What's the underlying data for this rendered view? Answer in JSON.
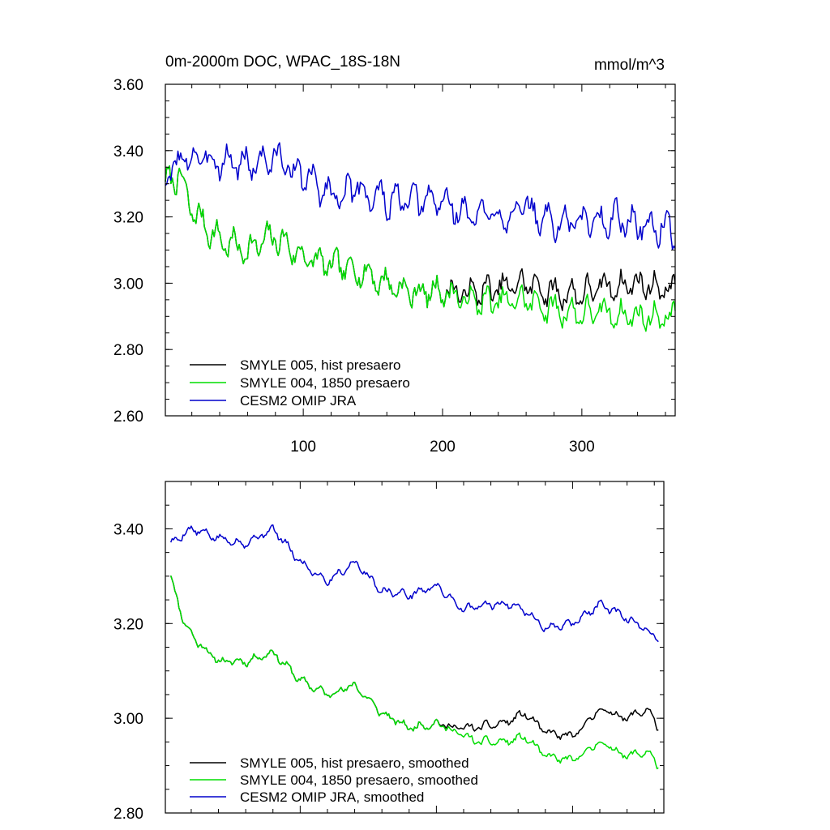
{
  "chart_data": [
    {
      "type": "line",
      "title": "0m-2000m DOC, WPAC_18S-18N",
      "units": "mmol/m^3",
      "xlim": [
        1,
        367
      ],
      "ylim": [
        2.6,
        3.6
      ],
      "xticks": [
        100,
        200,
        300
      ],
      "xtick_labels": [
        "100",
        "200",
        "300"
      ],
      "yticks": [
        2.6,
        2.8,
        3.0,
        3.2,
        3.4,
        3.6
      ],
      "ytick_labels": [
        "2.60",
        "2.80",
        "3.00",
        "3.20",
        "3.40",
        "3.60"
      ],
      "legend_position": "bottom-left",
      "grid": false,
      "series": [
        {
          "name": "SMYLE 005, hist presaero",
          "color": "#000000",
          "x_start": 1,
          "x_end": 367,
          "anchors": [
            [
              1,
              3.3
            ],
            [
              10,
              3.33
            ],
            [
              20,
              3.22
            ],
            [
              40,
              3.13
            ],
            [
              60,
              3.1
            ],
            [
              80,
              3.14
            ],
            [
              100,
              3.08
            ],
            [
              120,
              3.05
            ],
            [
              140,
              3.04
            ],
            [
              160,
              3.0
            ],
            [
              180,
              2.97
            ],
            [
              200,
              2.98
            ],
            [
              215,
              2.97
            ],
            [
              240,
              2.98
            ],
            [
              260,
              3.0
            ],
            [
              280,
              2.97
            ],
            [
              300,
              2.97
            ],
            [
              320,
              2.99
            ],
            [
              340,
              3.0
            ],
            [
              367,
              2.98
            ]
          ],
          "amplitude": 0.075,
          "seed": 7
        },
        {
          "name": "SMYLE 004, 1850 presaero",
          "color": "#00dd00",
          "x_start": 1,
          "x_end": 367,
          "anchors": [
            [
              1,
              3.3
            ],
            [
              10,
              3.33
            ],
            [
              20,
              3.22
            ],
            [
              40,
              3.13
            ],
            [
              60,
              3.1
            ],
            [
              80,
              3.14
            ],
            [
              100,
              3.08
            ],
            [
              120,
              3.05
            ],
            [
              140,
              3.04
            ],
            [
              160,
              3.0
            ],
            [
              180,
              2.97
            ],
            [
              200,
              2.98
            ],
            [
              215,
              2.95
            ],
            [
              240,
              2.94
            ],
            [
              260,
              2.95
            ],
            [
              280,
              2.92
            ],
            [
              300,
              2.91
            ],
            [
              320,
              2.91
            ],
            [
              340,
              2.9
            ],
            [
              367,
              2.9
            ]
          ],
          "amplitude": 0.075,
          "seed": 7
        },
        {
          "name": "CESM2 OMIP JRA",
          "color": "#0000cc",
          "x_start": 1,
          "x_end": 367,
          "anchors": [
            [
              1,
              3.32
            ],
            [
              15,
              3.38
            ],
            [
              40,
              3.37
            ],
            [
              60,
              3.36
            ],
            [
              80,
              3.38
            ],
            [
              100,
              3.32
            ],
            [
              120,
              3.27
            ],
            [
              140,
              3.28
            ],
            [
              160,
              3.25
            ],
            [
              180,
              3.24
            ],
            [
              200,
              3.25
            ],
            [
              220,
              3.2
            ],
            [
              240,
              3.21
            ],
            [
              260,
              3.22
            ],
            [
              280,
              3.18
            ],
            [
              300,
              3.19
            ],
            [
              320,
              3.2
            ],
            [
              340,
              3.18
            ],
            [
              367,
              3.16
            ]
          ],
          "amplitude": 0.085,
          "seed": 3
        }
      ]
    },
    {
      "type": "line",
      "title": "",
      "xlim": [
        1,
        367
      ],
      "ylim": [
        2.8,
        3.5
      ],
      "xticks": [
        100,
        200,
        300
      ],
      "xtick_labels": [],
      "yticks": [
        2.8,
        3.0,
        3.2,
        3.4
      ],
      "ytick_labels": [
        "2.80",
        "3.00",
        "3.20",
        "3.40"
      ],
      "legend_position": "bottom-left",
      "grid": false,
      "series": [
        {
          "name": "SMYLE 005, hist presaero, smoothed",
          "color": "#000000",
          "x_start": 5,
          "x_end": 363,
          "anchors": [
            [
              5,
              3.3
            ],
            [
              15,
              3.2
            ],
            [
              25,
              3.16
            ],
            [
              40,
              3.12
            ],
            [
              60,
              3.12
            ],
            [
              80,
              3.14
            ],
            [
              100,
              3.08
            ],
            [
              120,
              3.05
            ],
            [
              140,
              3.07
            ],
            [
              160,
              3.01
            ],
            [
              180,
              2.98
            ],
            [
              200,
              2.99
            ],
            [
              215,
              2.98
            ],
            [
              230,
              2.98
            ],
            [
              250,
              2.99
            ],
            [
              265,
              3.01
            ],
            [
              280,
              2.97
            ],
            [
              300,
              2.96
            ],
            [
              320,
              3.02
            ],
            [
              340,
              3.0
            ],
            [
              355,
              3.02
            ],
            [
              363,
              2.98
            ]
          ],
          "amplitude": 0.015,
          "seed": 11
        },
        {
          "name": "SMYLE 004, 1850 presaero, smoothed",
          "color": "#00dd00",
          "x_start": 5,
          "x_end": 363,
          "anchors": [
            [
              5,
              3.3
            ],
            [
              15,
              3.2
            ],
            [
              25,
              3.16
            ],
            [
              40,
              3.12
            ],
            [
              60,
              3.12
            ],
            [
              80,
              3.14
            ],
            [
              100,
              3.08
            ],
            [
              120,
              3.05
            ],
            [
              140,
              3.07
            ],
            [
              160,
              3.01
            ],
            [
              180,
              2.98
            ],
            [
              200,
              2.99
            ],
            [
              215,
              2.97
            ],
            [
              230,
              2.95
            ],
            [
              250,
              2.95
            ],
            [
              265,
              2.96
            ],
            [
              280,
              2.92
            ],
            [
              300,
              2.91
            ],
            [
              320,
              2.95
            ],
            [
              340,
              2.92
            ],
            [
              355,
              2.93
            ],
            [
              363,
              2.9
            ]
          ],
          "amplitude": 0.015,
          "seed": 11
        },
        {
          "name": "CESM2 OMIP JRA, smoothed",
          "color": "#0000cc",
          "x_start": 5,
          "x_end": 363,
          "anchors": [
            [
              5,
              3.37
            ],
            [
              20,
              3.4
            ],
            [
              40,
              3.38
            ],
            [
              60,
              3.37
            ],
            [
              80,
              3.4
            ],
            [
              100,
              3.33
            ],
            [
              120,
              3.29
            ],
            [
              140,
              3.33
            ],
            [
              160,
              3.27
            ],
            [
              180,
              3.26
            ],
            [
              200,
              3.28
            ],
            [
              220,
              3.23
            ],
            [
              240,
              3.24
            ],
            [
              260,
              3.24
            ],
            [
              280,
              3.19
            ],
            [
              300,
              3.2
            ],
            [
              320,
              3.24
            ],
            [
              340,
              3.21
            ],
            [
              363,
              3.17
            ]
          ],
          "amplitude": 0.015,
          "seed": 5
        }
      ]
    }
  ]
}
